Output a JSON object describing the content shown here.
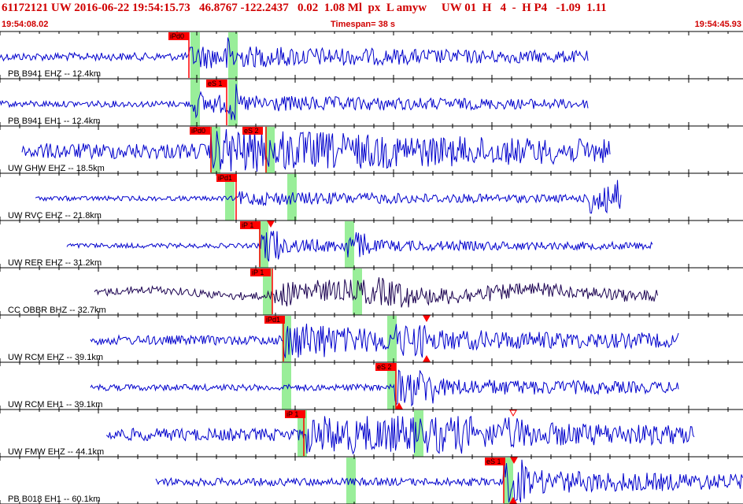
{
  "header": {
    "title": "61172121 UW 2016-06-22 19:54:15.73   46.8767 -122.2437   0.02  1.08 Ml  px  L amyw     UW 01  H   4  -  H P4   -1.09  1.11",
    "start_time": "19:54:08.02",
    "timespan": "Timespan=  38 s",
    "end_time": "19:54:45.93"
  },
  "colors": {
    "header_red": "#d00000",
    "trace_blue": "#0000cc",
    "trace_dark": "#1a0050",
    "pick_red": "#ff0000",
    "window_green": "#99ee99",
    "grid": "#000000"
  },
  "traces": [
    {
      "label": "PB B941 EHZ -- 12.4km",
      "color": "blue",
      "start": 0,
      "end": 748,
      "amp": 5,
      "arrival": 240,
      "picks": [
        {
          "x": 214,
          "label": "iPd0",
          "line": 240
        }
      ],
      "greens": [
        [
          242,
          254
        ],
        [
          290,
          302
        ]
      ],
      "burst": [
        [
          288,
          300,
          26
        ]
      ],
      "markers": []
    },
    {
      "label": "PB B941 EH1 -- 12.4km",
      "color": "blue",
      "start": 0,
      "end": 748,
      "amp": 4,
      "arrival": 243,
      "picks": [
        {
          "x": 262,
          "label": "eS 1",
          "line": 288
        }
      ],
      "greens": [
        [
          242,
          254
        ],
        [
          290,
          302
        ]
      ],
      "burst": [
        [
          244,
          256,
          18
        ],
        [
          290,
          300,
          26
        ]
      ],
      "markers": []
    },
    {
      "label": "UW GHW EHZ -- 18.5km",
      "color": "blue",
      "start": 28,
      "end": 776,
      "amp": 10,
      "arrival": 266,
      "picks": [
        {
          "x": 241,
          "label": "iPd0",
          "line": 268
        },
        {
          "x": 308,
          "label": "eS 2",
          "line": 338
        }
      ],
      "greens": [
        [
          268,
          280
        ],
        [
          337,
          349
        ]
      ],
      "burst": [
        [
          266,
          282,
          26
        ],
        [
          334,
          348,
          22
        ]
      ],
      "markers": []
    },
    {
      "label": "UW RVC EHZ -- 21.8km",
      "color": "blue",
      "start": 45,
      "end": 790,
      "amp": 3,
      "arrival": 300,
      "picks": [
        {
          "x": 275,
          "label": "iPd1",
          "line": 300
        }
      ],
      "greens": [
        [
          286,
          298
        ],
        [
          365,
          377
        ]
      ],
      "burst": [
        [
          748,
          790,
          24
        ]
      ],
      "markers": []
    },
    {
      "label": "UW RER EHZ -- 31.2km",
      "color": "blue",
      "start": 85,
      "end": 830,
      "amp": 3,
      "arrival": 330,
      "picks": [
        {
          "x": 305,
          "label": "iP 1",
          "line": 330
        }
      ],
      "greens": [
        [
          329,
          341
        ],
        [
          438,
          450
        ]
      ],
      "burst": [
        [
          330,
          356,
          24
        ],
        [
          440,
          470,
          18
        ]
      ],
      "markers": [
        {
          "x": 344,
          "dir": "down"
        }
      ]
    },
    {
      "label": "CC OBBR BHZ -- 32.7km",
      "color": "dark",
      "start": 120,
      "end": 836,
      "amp": 5,
      "arrival": 346,
      "picks": [
        {
          "x": 318,
          "label": "iP 1",
          "line": 346
        }
      ],
      "greens": [
        [
          334,
          346
        ],
        [
          448,
          460
        ]
      ],
      "burst": [
        [
          346,
          400,
          16
        ],
        [
          460,
          520,
          18
        ]
      ],
      "markers": []
    },
    {
      "label": "UW RCM EHZ -- 39.1km",
      "color": "blue",
      "start": 115,
      "end": 862,
      "amp": 6,
      "arrival": 360,
      "picks": [
        {
          "x": 336,
          "label": "iPd1",
          "line": 360
        }
      ],
      "greens": [
        [
          358,
          370
        ],
        [
          492,
          504
        ]
      ],
      "burst": [
        [
          360,
          420,
          24
        ],
        [
          500,
          545,
          22
        ]
      ],
      "markers": [
        {
          "x": 542,
          "dir": "down"
        },
        {
          "x": 542,
          "dir": "up"
        }
      ]
    },
    {
      "label": "UW RCM EH1 -- 39.1km",
      "color": "blue",
      "start": 115,
      "end": 862,
      "amp": 4,
      "arrival": 500,
      "picks": [
        {
          "x": 477,
          "label": "eS 2",
          "line": 503
        }
      ],
      "greens": [
        [
          358,
          370
        ],
        [
          492,
          504
        ]
      ],
      "burst": [
        [
          500,
          550,
          24
        ]
      ],
      "markers": [
        {
          "x": 507,
          "dir": "up"
        }
      ]
    },
    {
      "label": "UW FMW EHZ -- 44.1km",
      "color": "blue",
      "start": 135,
      "end": 882,
      "amp": 8,
      "arrival": 386,
      "picks": [
        {
          "x": 362,
          "label": "iP 1",
          "line": 386
        }
      ],
      "greens": [
        [
          378,
          390
        ],
        [
          526,
          538
        ]
      ],
      "burst": [
        [
          386,
          600,
          24
        ],
        [
          640,
          666,
          22
        ]
      ],
      "markers": [
        {
          "x": 652,
          "dir": "down-open"
        }
      ]
    },
    {
      "label": "PB B018 EH1 -- 60.1km",
      "color": "blue",
      "start": 198,
      "end": 944,
      "amp": 5,
      "arrival": 652,
      "picks": [
        {
          "x": 616,
          "label": "eS 1",
          "line": 640
        }
      ],
      "greens": [
        [
          440,
          452
        ],
        [
          640,
          652
        ]
      ],
      "burst": [
        [
          640,
          670,
          30
        ]
      ],
      "markers": [
        {
          "x": 653,
          "dir": "down"
        },
        {
          "x": 652,
          "dir": "up"
        }
      ]
    }
  ]
}
